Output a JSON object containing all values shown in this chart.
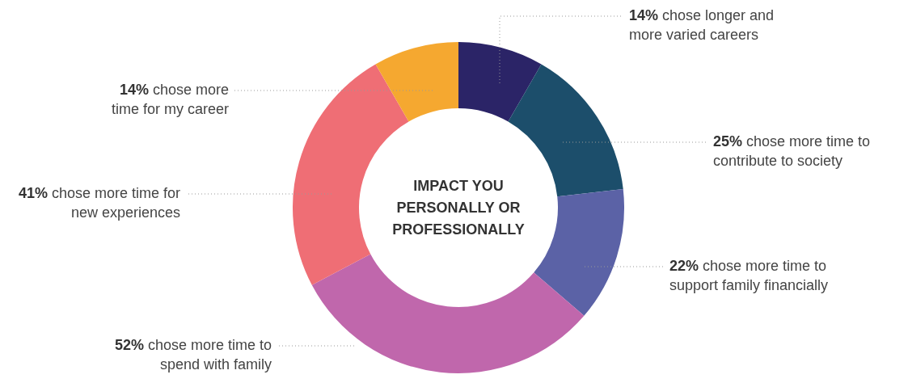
{
  "chart_data": {
    "type": "donut",
    "title": "IMPACT YOU PERSONALLY OR PROFESSIONALLY",
    "categories": [
      "chose longer and more varied careers",
      "chose more time to contribute to society",
      "chose more time to support family financially",
      "chose more time to spend with family",
      "chose more time for new experiences",
      "chose more time for my career"
    ],
    "values": [
      14,
      25,
      22,
      52,
      41,
      14
    ],
    "value_labels": [
      "14%",
      "25%",
      "22%",
      "52%",
      "41%",
      "14%"
    ],
    "colors": [
      "#2b2467",
      "#1c4e6b",
      "#5b62a6",
      "#c067ac",
      "#ef6e75",
      "#f5a830"
    ],
    "legend": false
  }
}
